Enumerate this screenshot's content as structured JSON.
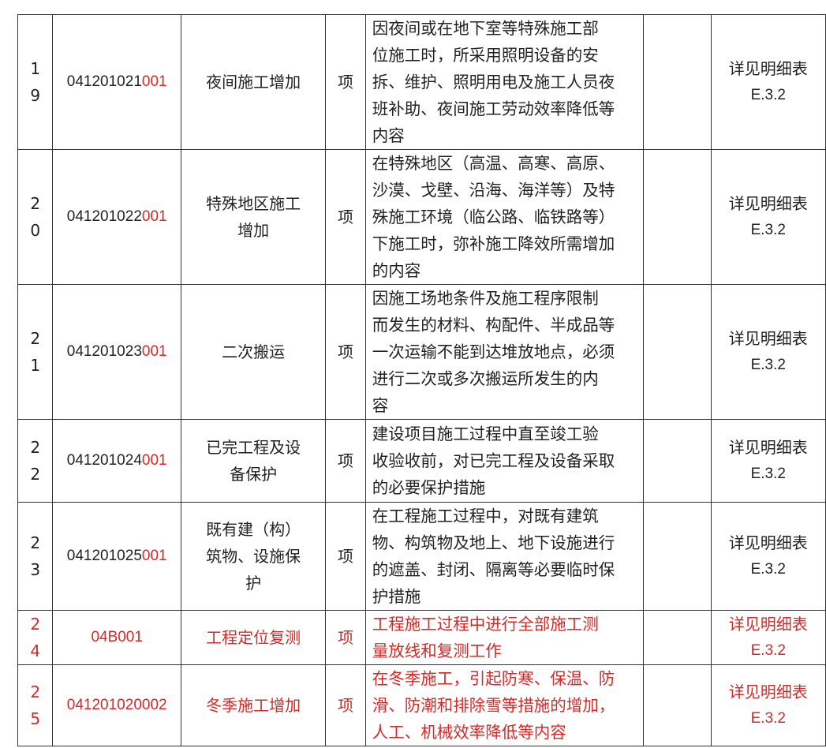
{
  "colors": {
    "highlight": "#d42a2a",
    "text": "#222222"
  },
  "rows": [
    {
      "idx": "1\n9",
      "code_prefix": "041201021",
      "code_suffix": "001",
      "name": "夜间施工增加",
      "unit": "项",
      "desc": "因夜间或在地下室等特殊施工部\n位施工时，所采用照明设备的安\n拆、维护、照明用电及施工人员夜\n班补助、夜间施工劳动效率降低等\n内容",
      "note": "详见明细表",
      "note_code": "E.3.2",
      "highlight": false
    },
    {
      "idx": "2\n0",
      "code_prefix": "041201022",
      "code_suffix": "001",
      "name": "特殊地区施工\n增加",
      "unit": "项",
      "desc": "在特殊地区（高温、高寒、高原、\n沙漠、戈壁、沿海、海洋等）及特\n殊施工环境（临公路、临铁路等）\n下施工时，弥补施工降效所需增加\n的内容",
      "note": "详见明细表",
      "note_code": "E.3.2",
      "highlight": false
    },
    {
      "idx": "2\n1",
      "code_prefix": "041201023",
      "code_suffix": "001",
      "name": "二次搬运",
      "unit": "项",
      "desc": "因施工场地条件及施工程序限制\n而发生的材料、构配件、半成品等\n一次运输不能到达堆放地点，必须\n进行二次或多次搬运所发生的内\n容",
      "note": "详见明细表",
      "note_code": "E.3.2",
      "highlight": false
    },
    {
      "idx": "2\n2",
      "code_prefix": "041201024",
      "code_suffix": "001",
      "name": "已完工程及设\n备保护",
      "unit": "项",
      "desc": "建设项目施工过程中直至竣工验\n收验收前，对已完工程及设备采取\n的必要保护措施",
      "note": "详见明细表",
      "note_code": "E.3.2",
      "highlight": false
    },
    {
      "idx": "2\n3",
      "code_prefix": "041201025",
      "code_suffix": "001",
      "name": "既有建（构）\n筑物、设施保\n护",
      "unit": "项",
      "desc": "在工程施工过程中，对既有建筑\n物、构筑物及地上、地下设施进行\n的遮盖、封闭、隔离等必要临时保\n护措施",
      "note": "详见明细表",
      "note_code": "E.3.2",
      "highlight": false
    },
    {
      "idx": "2\n4",
      "code_prefix": "04B001",
      "code_suffix": "",
      "name": "工程定位复测",
      "unit": "项",
      "desc": "工程施工过程中进行全部施工测\n量放线和复测工作",
      "note": "详见明细表",
      "note_code": "E.3.2",
      "highlight": true
    },
    {
      "idx": "2\n5",
      "code_prefix": "041201020002",
      "code_suffix": "",
      "name": "冬季施工增加",
      "unit": "项",
      "desc": "在冬季施工，引起防寒、保温、防\n滑、防潮和排除雪等措施的增加，\n人工、机械效率降低等内容",
      "note": "详见明细表",
      "note_code": "E.3.2",
      "highlight": true
    }
  ]
}
